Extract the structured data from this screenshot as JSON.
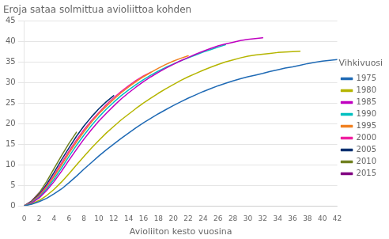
{
  "chart_data": {
    "type": "line",
    "title": "Eroja sataa solmittua avioliittoa kohden",
    "xlabel": "Avioliiton kesto vuosina",
    "legend_title": "Vihkivuosi",
    "legend": "right",
    "grid": "y",
    "xlim": [
      0,
      42
    ],
    "ylim": [
      0,
      45
    ],
    "xticks": [
      0,
      2,
      4,
      6,
      8,
      10,
      12,
      14,
      16,
      18,
      20,
      22,
      24,
      26,
      28,
      30,
      32,
      34,
      36,
      38,
      40,
      42
    ],
    "yticks": [
      0,
      5,
      10,
      15,
      20,
      25,
      30,
      35,
      40,
      45
    ],
    "series": [
      {
        "name": "1975",
        "color": "#1f6ab5",
        "x": [
          0,
          1,
          2,
          3,
          4,
          5,
          6,
          7,
          8,
          9,
          10,
          11,
          12,
          13,
          14,
          15,
          16,
          17,
          18,
          19,
          20,
          21,
          22,
          23,
          24,
          25,
          26,
          27,
          28,
          29,
          30,
          31,
          32,
          33,
          34,
          35,
          36,
          37,
          38,
          39,
          40,
          41,
          42
        ],
        "values": [
          0.0,
          0.4,
          1.0,
          1.8,
          2.9,
          4.1,
          5.6,
          7.2,
          8.9,
          10.5,
          12.1,
          13.6,
          15.0,
          16.4,
          17.7,
          19.0,
          20.2,
          21.3,
          22.4,
          23.4,
          24.4,
          25.3,
          26.2,
          27.0,
          27.8,
          28.5,
          29.2,
          29.8,
          30.4,
          30.9,
          31.4,
          31.8,
          32.2,
          32.7,
          33.1,
          33.5,
          33.8,
          34.2,
          34.6,
          34.9,
          35.2,
          35.4,
          35.6
        ]
      },
      {
        "name": "1980",
        "color": "#b5b500",
        "x": [
          0,
          1,
          2,
          3,
          4,
          5,
          6,
          7,
          8,
          9,
          10,
          11,
          12,
          13,
          14,
          15,
          16,
          17,
          18,
          19,
          20,
          21,
          22,
          23,
          24,
          25,
          26,
          27,
          28,
          29,
          30,
          31,
          32,
          33,
          34,
          35,
          36,
          37
        ],
        "values": [
          0.0,
          0.5,
          1.3,
          2.5,
          4.0,
          5.8,
          7.8,
          9.9,
          12.0,
          14.0,
          15.9,
          17.7,
          19.3,
          20.9,
          22.3,
          23.7,
          25.0,
          26.2,
          27.4,
          28.5,
          29.5,
          30.5,
          31.4,
          32.2,
          33.0,
          33.7,
          34.4,
          35.0,
          35.5,
          36.0,
          36.4,
          36.7,
          36.9,
          37.1,
          37.3,
          37.4,
          37.5,
          37.6
        ]
      },
      {
        "name": "1985",
        "color": "#c000c0",
        "x": [
          0,
          1,
          2,
          3,
          4,
          5,
          6,
          7,
          8,
          9,
          10,
          11,
          12,
          13,
          14,
          15,
          16,
          17,
          18,
          19,
          20,
          21,
          22,
          23,
          24,
          25,
          26,
          27,
          28,
          29,
          30,
          31,
          32
        ],
        "values": [
          0.0,
          0.7,
          1.9,
          3.7,
          5.9,
          8.4,
          11.1,
          13.7,
          16.2,
          18.5,
          20.6,
          22.5,
          24.3,
          26.0,
          27.5,
          28.9,
          30.2,
          31.4,
          32.5,
          33.5,
          34.4,
          35.3,
          36.1,
          36.9,
          37.6,
          38.3,
          38.9,
          39.4,
          39.8,
          40.2,
          40.5,
          40.7,
          40.9
        ]
      },
      {
        "name": "1990",
        "color": "#00c0c0",
        "x": [
          0,
          1,
          2,
          3,
          4,
          5,
          6,
          7,
          8,
          9,
          10,
          11,
          12,
          13,
          14,
          15,
          16,
          17,
          18,
          19,
          20,
          21,
          22,
          23,
          24,
          25,
          26,
          27
        ],
        "values": [
          0.0,
          0.8,
          2.1,
          4.1,
          6.5,
          9.2,
          12.0,
          14.7,
          17.2,
          19.5,
          21.6,
          23.5,
          25.2,
          26.8,
          28.2,
          29.5,
          30.7,
          31.8,
          32.8,
          33.7,
          34.5,
          35.3,
          36.0,
          36.7,
          37.4,
          38.0,
          38.6,
          39.2
        ]
      },
      {
        "name": "1995",
        "color": "#f08020",
        "x": [
          0,
          1,
          2,
          3,
          4,
          5,
          6,
          7,
          8,
          9,
          10,
          11,
          12,
          13,
          14,
          15,
          16,
          17,
          18,
          19,
          20,
          21,
          22
        ],
        "values": [
          0.0,
          0.9,
          2.3,
          4.5,
          7.1,
          9.9,
          12.8,
          15.5,
          18.0,
          20.3,
          22.4,
          24.2,
          25.9,
          27.5,
          28.9,
          30.2,
          31.4,
          32.5,
          33.5,
          34.4,
          35.2,
          35.9,
          36.5
        ]
      },
      {
        "name": "2000",
        "color": "#f020a0",
        "x": [
          0,
          1,
          2,
          3,
          4,
          5,
          6,
          7,
          8,
          9,
          10,
          11,
          12,
          13,
          14,
          15,
          16,
          17
        ],
        "values": [
          0.0,
          0.9,
          2.5,
          4.8,
          7.5,
          10.4,
          13.3,
          16.0,
          18.5,
          20.7,
          22.7,
          24.6,
          26.3,
          27.8,
          29.2,
          30.5,
          31.6,
          32.5
        ]
      },
      {
        "name": "2005",
        "color": "#003070",
        "x": [
          0,
          1,
          2,
          3,
          4,
          5,
          6,
          7,
          8,
          9,
          10,
          11,
          12
        ],
        "values": [
          0.0,
          1.0,
          2.7,
          5.2,
          8.1,
          11.2,
          14.1,
          16.9,
          19.4,
          21.6,
          23.6,
          25.3,
          26.8
        ]
      },
      {
        "name": "2010",
        "color": "#708020",
        "x": [
          0,
          1,
          2,
          3,
          4,
          5,
          6,
          7
        ],
        "values": [
          0.0,
          1.1,
          3.1,
          5.9,
          9.1,
          12.2,
          15.2,
          17.9
        ]
      },
      {
        "name": "2015",
        "color": "#800080",
        "x": [
          0,
          1,
          2
        ],
        "values": [
          0.0,
          1.2,
          3.2
        ]
      }
    ]
  }
}
